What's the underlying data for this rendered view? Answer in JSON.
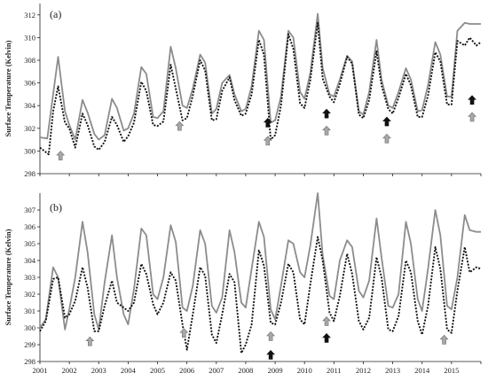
{
  "chart_data": [
    {
      "type": "line",
      "panel_label": "(a)",
      "ylabel": "Surface Temperature (Kelvin)",
      "xlabel": "",
      "ylim": [
        298,
        313
      ],
      "yticks": [
        298,
        300,
        302,
        304,
        306,
        308,
        310,
        312
      ],
      "xlim": [
        2001,
        2016
      ],
      "xtick_labels": [
        "2001",
        "2002",
        "2003",
        "2004",
        "2005",
        "2006",
        "2007",
        "2008",
        "2009",
        "2010",
        "2011",
        "2012",
        "2013",
        "2014",
        "2015"
      ],
      "series": [
        {
          "style": "solid-grey",
          "color": "#8c8c8c",
          "x": [
            2001.0,
            2001.25,
            2001.45,
            2001.62,
            2001.85,
            2002.0,
            2002.2,
            2002.45,
            2002.62,
            2002.85,
            2003.0,
            2003.2,
            2003.45,
            2003.62,
            2003.85,
            2004.0,
            2004.2,
            2004.45,
            2004.62,
            2004.85,
            2005.0,
            2005.2,
            2005.45,
            2005.62,
            2005.85,
            2006.0,
            2006.2,
            2006.45,
            2006.62,
            2006.85,
            2007.0,
            2007.2,
            2007.45,
            2007.62,
            2007.85,
            2008.0,
            2008.2,
            2008.45,
            2008.62,
            2008.85,
            2009.0,
            2009.2,
            2009.45,
            2009.62,
            2009.85,
            2010.0,
            2010.2,
            2010.45,
            2010.62,
            2010.85,
            2011.0,
            2011.2,
            2011.45,
            2011.62,
            2011.85,
            2012.0,
            2012.2,
            2012.45,
            2012.62,
            2012.85,
            2013.0,
            2013.2,
            2013.45,
            2013.62,
            2013.85,
            2014.0,
            2014.2,
            2014.45,
            2014.62,
            2014.85,
            2015.0,
            2015.2,
            2015.45,
            2015.62,
            2015.85,
            2016.0
          ],
          "values": [
            301.2,
            301.1,
            305.0,
            308.3,
            303.5,
            302.3,
            301.0,
            304.5,
            303.4,
            301.5,
            301.0,
            301.4,
            304.6,
            303.8,
            301.8,
            302.0,
            303.3,
            307.4,
            306.8,
            303.0,
            302.9,
            303.5,
            309.2,
            307.3,
            304.0,
            303.8,
            305.5,
            308.5,
            307.8,
            303.3,
            303.7,
            306.0,
            306.7,
            305.0,
            303.5,
            303.7,
            305.7,
            310.6,
            309.8,
            302.5,
            302.7,
            304.8,
            310.6,
            310.0,
            305.2,
            304.6,
            306.9,
            312.1,
            307.3,
            305.0,
            304.8,
            306.3,
            308.4,
            307.9,
            303.5,
            303.2,
            305.2,
            309.8,
            306.3,
            304.0,
            303.8,
            305.2,
            307.3,
            306.3,
            303.5,
            303.6,
            305.8,
            309.6,
            308.5,
            304.8,
            304.8,
            310.6,
            311.3,
            311.2,
            311.2,
            311.2
          ]
        },
        {
          "style": "dotted-black",
          "color": "#111111",
          "x": [
            2001.0,
            2001.3,
            2001.45,
            2001.62,
            2001.85,
            2002.0,
            2002.2,
            2002.45,
            2002.62,
            2002.85,
            2003.0,
            2003.2,
            2003.45,
            2003.62,
            2003.85,
            2004.0,
            2004.2,
            2004.45,
            2004.62,
            2004.85,
            2005.0,
            2005.2,
            2005.45,
            2005.62,
            2005.85,
            2006.0,
            2006.2,
            2006.45,
            2006.62,
            2006.85,
            2007.0,
            2007.2,
            2007.45,
            2007.62,
            2007.85,
            2008.0,
            2008.2,
            2008.45,
            2008.62,
            2008.85,
            2009.0,
            2009.2,
            2009.45,
            2009.62,
            2009.85,
            2010.0,
            2010.2,
            2010.45,
            2010.62,
            2010.85,
            2011.0,
            2011.2,
            2011.45,
            2011.62,
            2011.85,
            2012.0,
            2012.2,
            2012.45,
            2012.62,
            2012.85,
            2013.0,
            2013.2,
            2013.45,
            2013.62,
            2013.85,
            2014.0,
            2014.2,
            2014.45,
            2014.62,
            2014.85,
            2015.0,
            2015.2,
            2015.45,
            2015.62,
            2015.85,
            2016.0
          ],
          "values": [
            300.3,
            299.7,
            303.5,
            305.7,
            302.5,
            302.0,
            300.3,
            303.3,
            302.3,
            300.4,
            300.1,
            300.8,
            303.0,
            302.3,
            300.8,
            301.3,
            302.5,
            306.1,
            305.3,
            302.3,
            302.2,
            302.6,
            307.6,
            305.5,
            302.7,
            302.9,
            304.9,
            308.0,
            307.1,
            302.7,
            302.8,
            305.3,
            306.5,
            304.5,
            303.1,
            303.3,
            305.0,
            309.8,
            308.5,
            301.0,
            301.4,
            304.0,
            310.3,
            309.0,
            304.2,
            303.8,
            306.3,
            311.3,
            306.4,
            304.8,
            304.3,
            305.9,
            308.3,
            307.7,
            303.2,
            302.9,
            304.5,
            308.8,
            305.8,
            303.7,
            303.3,
            304.7,
            306.8,
            305.8,
            303.0,
            303.0,
            304.9,
            308.7,
            307.9,
            304.1,
            304.1,
            309.7,
            309.3,
            310.0,
            309.3,
            309.6
          ]
        }
      ],
      "arrows": [
        {
          "x": 2001.7,
          "color": "grey",
          "y": 299.6
        },
        {
          "x": 2005.75,
          "color": "grey",
          "y": 302.2
        },
        {
          "x": 2008.75,
          "color": "grey",
          "y": 300.9
        },
        {
          "x": 2008.75,
          "color": "black",
          "y": 302.5
        },
        {
          "x": 2010.75,
          "color": "grey",
          "y": 301.8
        },
        {
          "x": 2010.75,
          "color": "black",
          "y": 303.3
        },
        {
          "x": 2012.8,
          "color": "grey",
          "y": 301.1
        },
        {
          "x": 2012.8,
          "color": "black",
          "y": 302.6
        },
        {
          "x": 2015.7,
          "color": "grey",
          "y": 303.0
        },
        {
          "x": 2015.7,
          "color": "black",
          "y": 304.5
        }
      ]
    },
    {
      "type": "line",
      "panel_label": "(b)",
      "ylabel": "Surface Temperature (Kelvin)",
      "xlabel": "",
      "ylim": [
        298,
        308
      ],
      "yticks": [
        298,
        299,
        300,
        301,
        302,
        303,
        304,
        305,
        306,
        307
      ],
      "xlim": [
        2001,
        2016
      ],
      "xtick_labels": [
        "2001",
        "2002",
        "2003",
        "2004",
        "2005",
        "2006",
        "2007",
        "2008",
        "2009",
        "2010",
        "2011",
        "2012",
        "2013",
        "2014",
        "2015"
      ],
      "series": [
        {
          "style": "solid-grey",
          "color": "#8c8c8c",
          "x": [
            2001.0,
            2001.2,
            2001.45,
            2001.62,
            2001.85,
            2002.0,
            2002.2,
            2002.45,
            2002.62,
            2002.85,
            2003.0,
            2003.2,
            2003.45,
            2003.62,
            2003.85,
            2004.0,
            2004.2,
            2004.45,
            2004.62,
            2004.85,
            2005.0,
            2005.2,
            2005.45,
            2005.62,
            2005.85,
            2006.0,
            2006.2,
            2006.45,
            2006.62,
            2006.85,
            2007.0,
            2007.2,
            2007.45,
            2007.62,
            2007.85,
            2008.0,
            2008.2,
            2008.45,
            2008.62,
            2008.85,
            2009.0,
            2009.2,
            2009.45,
            2009.62,
            2009.85,
            2010.0,
            2010.2,
            2010.45,
            2010.62,
            2010.85,
            2011.0,
            2011.2,
            2011.45,
            2011.62,
            2011.85,
            2012.0,
            2012.2,
            2012.45,
            2012.62,
            2012.85,
            2013.0,
            2013.2,
            2013.45,
            2013.62,
            2013.85,
            2014.0,
            2014.2,
            2014.45,
            2014.62,
            2014.85,
            2015.0,
            2015.2,
            2015.45,
            2015.62,
            2015.85,
            2016.0
          ],
          "values": [
            300.0,
            300.5,
            303.6,
            303.0,
            299.9,
            301.1,
            303.0,
            306.3,
            304.5,
            300.8,
            299.9,
            302.7,
            305.5,
            303.0,
            300.8,
            300.2,
            302.3,
            305.9,
            305.5,
            302.0,
            301.7,
            303.0,
            306.1,
            305.1,
            301.2,
            301.0,
            302.5,
            305.8,
            305.0,
            301.3,
            300.9,
            301.8,
            305.8,
            304.5,
            301.5,
            301.2,
            303.5,
            306.3,
            305.4,
            301.1,
            300.5,
            302.5,
            305.2,
            305.0,
            303.3,
            303.0,
            304.9,
            308.0,
            304.3,
            301.9,
            301.7,
            304.0,
            305.2,
            304.8,
            302.2,
            301.8,
            302.8,
            306.5,
            304.2,
            301.3,
            301.2,
            302.0,
            306.3,
            305.0,
            301.7,
            301.0,
            303.5,
            307.0,
            305.5,
            301.3,
            301.1,
            303.0,
            306.7,
            305.8,
            305.7,
            305.7
          ]
        },
        {
          "style": "dotted-black",
          "color": "#111111",
          "x": [
            2001.0,
            2001.2,
            2001.45,
            2001.62,
            2001.85,
            2002.0,
            2002.2,
            2002.45,
            2002.62,
            2002.85,
            2003.0,
            2003.2,
            2003.45,
            2003.62,
            2003.85,
            2004.0,
            2004.2,
            2004.45,
            2004.62,
            2004.85,
            2005.0,
            2005.2,
            2005.45,
            2005.62,
            2005.85,
            2006.0,
            2006.2,
            2006.45,
            2006.62,
            2006.85,
            2007.0,
            2007.2,
            2007.45,
            2007.62,
            2007.85,
            2008.0,
            2008.2,
            2008.45,
            2008.62,
            2008.85,
            2009.0,
            2009.2,
            2009.45,
            2009.62,
            2009.85,
            2010.0,
            2010.2,
            2010.45,
            2010.62,
            2010.85,
            2011.0,
            2011.2,
            2011.45,
            2011.62,
            2011.85,
            2012.0,
            2012.2,
            2012.45,
            2012.62,
            2012.85,
            2013.0,
            2013.2,
            2013.45,
            2013.62,
            2013.85,
            2014.0,
            2014.2,
            2014.45,
            2014.62,
            2014.85,
            2015.0,
            2015.2,
            2015.45,
            2015.62,
            2015.85,
            2016.0
          ],
          "values": [
            299.8,
            300.4,
            302.9,
            303.0,
            300.6,
            300.8,
            301.6,
            303.6,
            302.4,
            299.8,
            299.8,
            301.3,
            302.8,
            301.5,
            301.2,
            301.0,
            301.5,
            303.8,
            303.2,
            301.4,
            300.8,
            301.5,
            303.3,
            302.8,
            300.2,
            298.7,
            300.8,
            303.6,
            303.1,
            299.6,
            299.1,
            300.8,
            303.2,
            302.7,
            298.5,
            299.0,
            300.2,
            304.6,
            303.7,
            300.3,
            300.2,
            301.5,
            303.8,
            303.3,
            300.5,
            300.2,
            302.6,
            305.4,
            304.0,
            300.9,
            300.4,
            301.9,
            304.4,
            303.2,
            300.4,
            299.9,
            300.6,
            304.2,
            303.0,
            299.9,
            299.8,
            300.7,
            304.0,
            303.3,
            300.4,
            299.6,
            301.3,
            304.8,
            303.5,
            299.9,
            299.7,
            302.2,
            304.8,
            303.3,
            303.6,
            303.5
          ]
        }
      ],
      "arrows": [
        {
          "x": 2002.7,
          "color": "grey",
          "y": 299.2
        },
        {
          "x": 2005.9,
          "color": "grey",
          "y": 299.7
        },
        {
          "x": 2008.85,
          "color": "grey",
          "y": 299.5
        },
        {
          "x": 2008.85,
          "color": "black",
          "y": 298.4
        },
        {
          "x": 2010.75,
          "color": "grey",
          "y": 300.4
        },
        {
          "x": 2010.75,
          "color": "black",
          "y": 299.4
        },
        {
          "x": 2014.75,
          "color": "grey",
          "y": 299.3
        }
      ]
    }
  ]
}
